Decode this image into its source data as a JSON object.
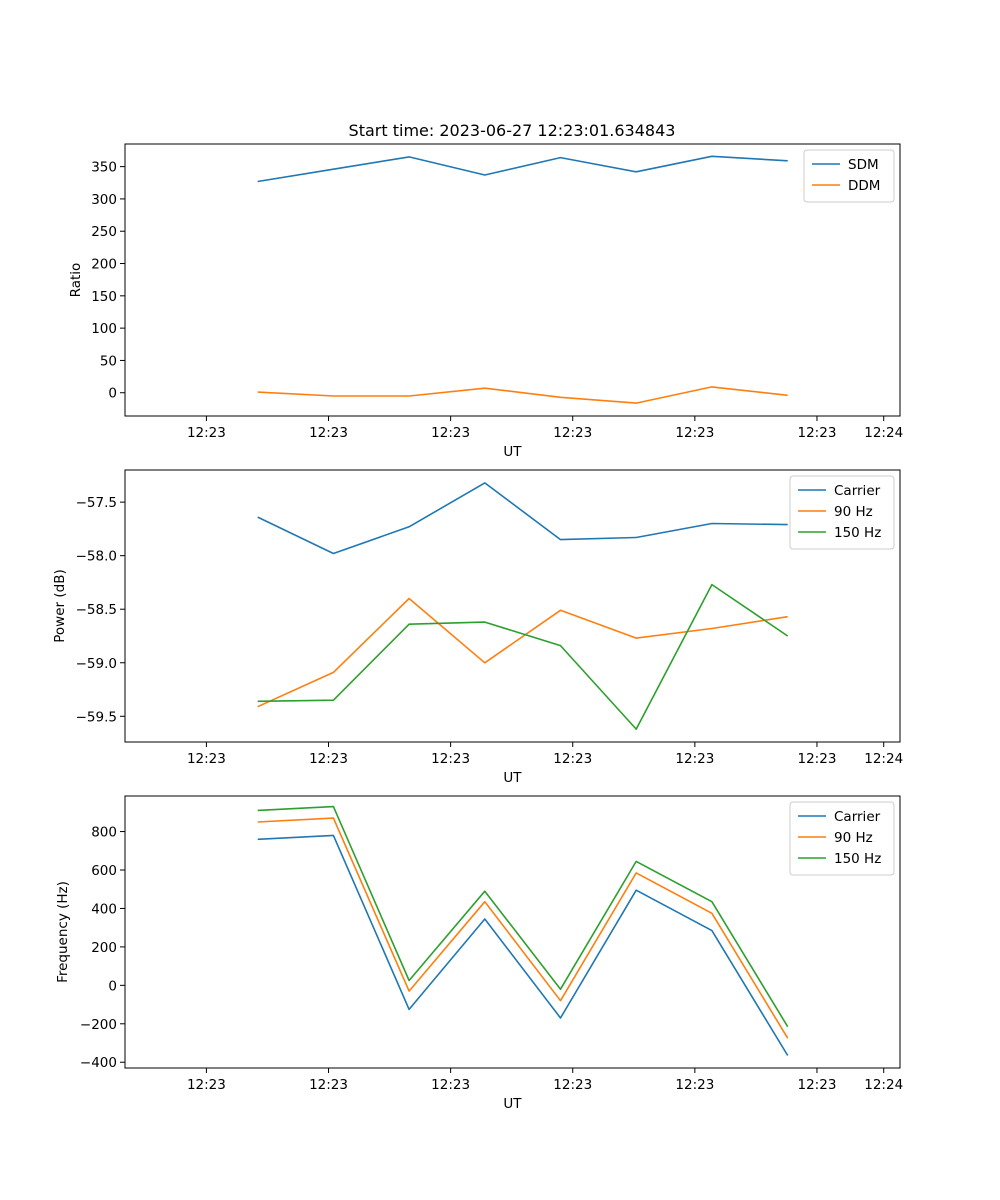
{
  "title": "Start time: 2023-06-27 12:23:01.634843",
  "x_tick_labels": [
    "12:23",
    "12:23",
    "12:23",
    "12:23",
    "12:23",
    "12:23",
    "12:24"
  ],
  "colors": {
    "blue": "#1f77b4",
    "orange": "#ff7f0e",
    "green": "#2ca02c"
  },
  "chart_data": [
    {
      "type": "line",
      "title": "Start time: 2023-06-27 12:23:01.634843",
      "xlabel": "UT",
      "ylabel": "Ratio",
      "x_unit": "seconds after 12:23:00",
      "x": [
        1.63,
        2.56,
        3.49,
        4.42,
        5.35,
        6.28,
        7.21,
        8.14
      ],
      "xlim": [
        0.0,
        9.52
      ],
      "ylim": [
        -36,
        385
      ],
      "yticks": [
        0,
        50,
        100,
        150,
        200,
        250,
        300,
        350
      ],
      "legend": "top-right",
      "series": [
        {
          "name": "SDM",
          "color": "#1f77b4",
          "values": [
            327,
            346,
            365,
            337,
            364,
            342,
            366,
            359
          ]
        },
        {
          "name": "DDM",
          "color": "#ff7f0e",
          "values": [
            1,
            -5,
            -5,
            7,
            -7,
            -16,
            9,
            -4
          ]
        }
      ]
    },
    {
      "type": "line",
      "xlabel": "UT",
      "ylabel": "Power (dB)",
      "x_unit": "seconds after 12:23:00",
      "x": [
        1.63,
        2.56,
        3.49,
        4.42,
        5.35,
        6.28,
        7.21,
        8.14
      ],
      "xlim": [
        0.0,
        9.52
      ],
      "ylim": [
        -59.74,
        -57.2
      ],
      "yticks": [
        -59.5,
        -59.0,
        -58.5,
        -58.0,
        -57.5
      ],
      "legend": "top-right",
      "series": [
        {
          "name": "Carrier",
          "color": "#1f77b4",
          "values": [
            -57.64,
            -57.98,
            -57.73,
            -57.32,
            -57.85,
            -57.83,
            -57.7,
            -57.71
          ]
        },
        {
          "name": "90 Hz",
          "color": "#ff7f0e",
          "values": [
            -59.41,
            -59.09,
            -58.4,
            -59.0,
            -58.51,
            -58.77,
            -58.68,
            -58.57
          ]
        },
        {
          "name": "150 Hz",
          "color": "#2ca02c",
          "values": [
            -59.36,
            -59.35,
            -58.64,
            -58.62,
            -58.84,
            -59.62,
            -58.27,
            -58.75
          ]
        }
      ]
    },
    {
      "type": "line",
      "xlabel": "UT",
      "ylabel": "Frequency (Hz)",
      "x_unit": "seconds after 12:23:00",
      "x": [
        1.63,
        2.56,
        3.49,
        4.42,
        5.35,
        6.28,
        7.21,
        8.14
      ],
      "xlim": [
        0.0,
        9.52
      ],
      "ylim": [
        -430,
        985
      ],
      "yticks": [
        -400,
        -200,
        0,
        200,
        400,
        600,
        800
      ],
      "legend": "top-right",
      "series": [
        {
          "name": "Carrier",
          "color": "#1f77b4",
          "values": [
            760,
            780,
            -125,
            345,
            -170,
            495,
            285,
            -365
          ]
        },
        {
          "name": "90 Hz",
          "color": "#ff7f0e",
          "values": [
            850,
            870,
            -30,
            435,
            -80,
            585,
            375,
            -275
          ]
        },
        {
          "name": "150 Hz",
          "color": "#2ca02c",
          "values": [
            910,
            930,
            25,
            490,
            -20,
            645,
            435,
            -215
          ]
        }
      ]
    }
  ]
}
